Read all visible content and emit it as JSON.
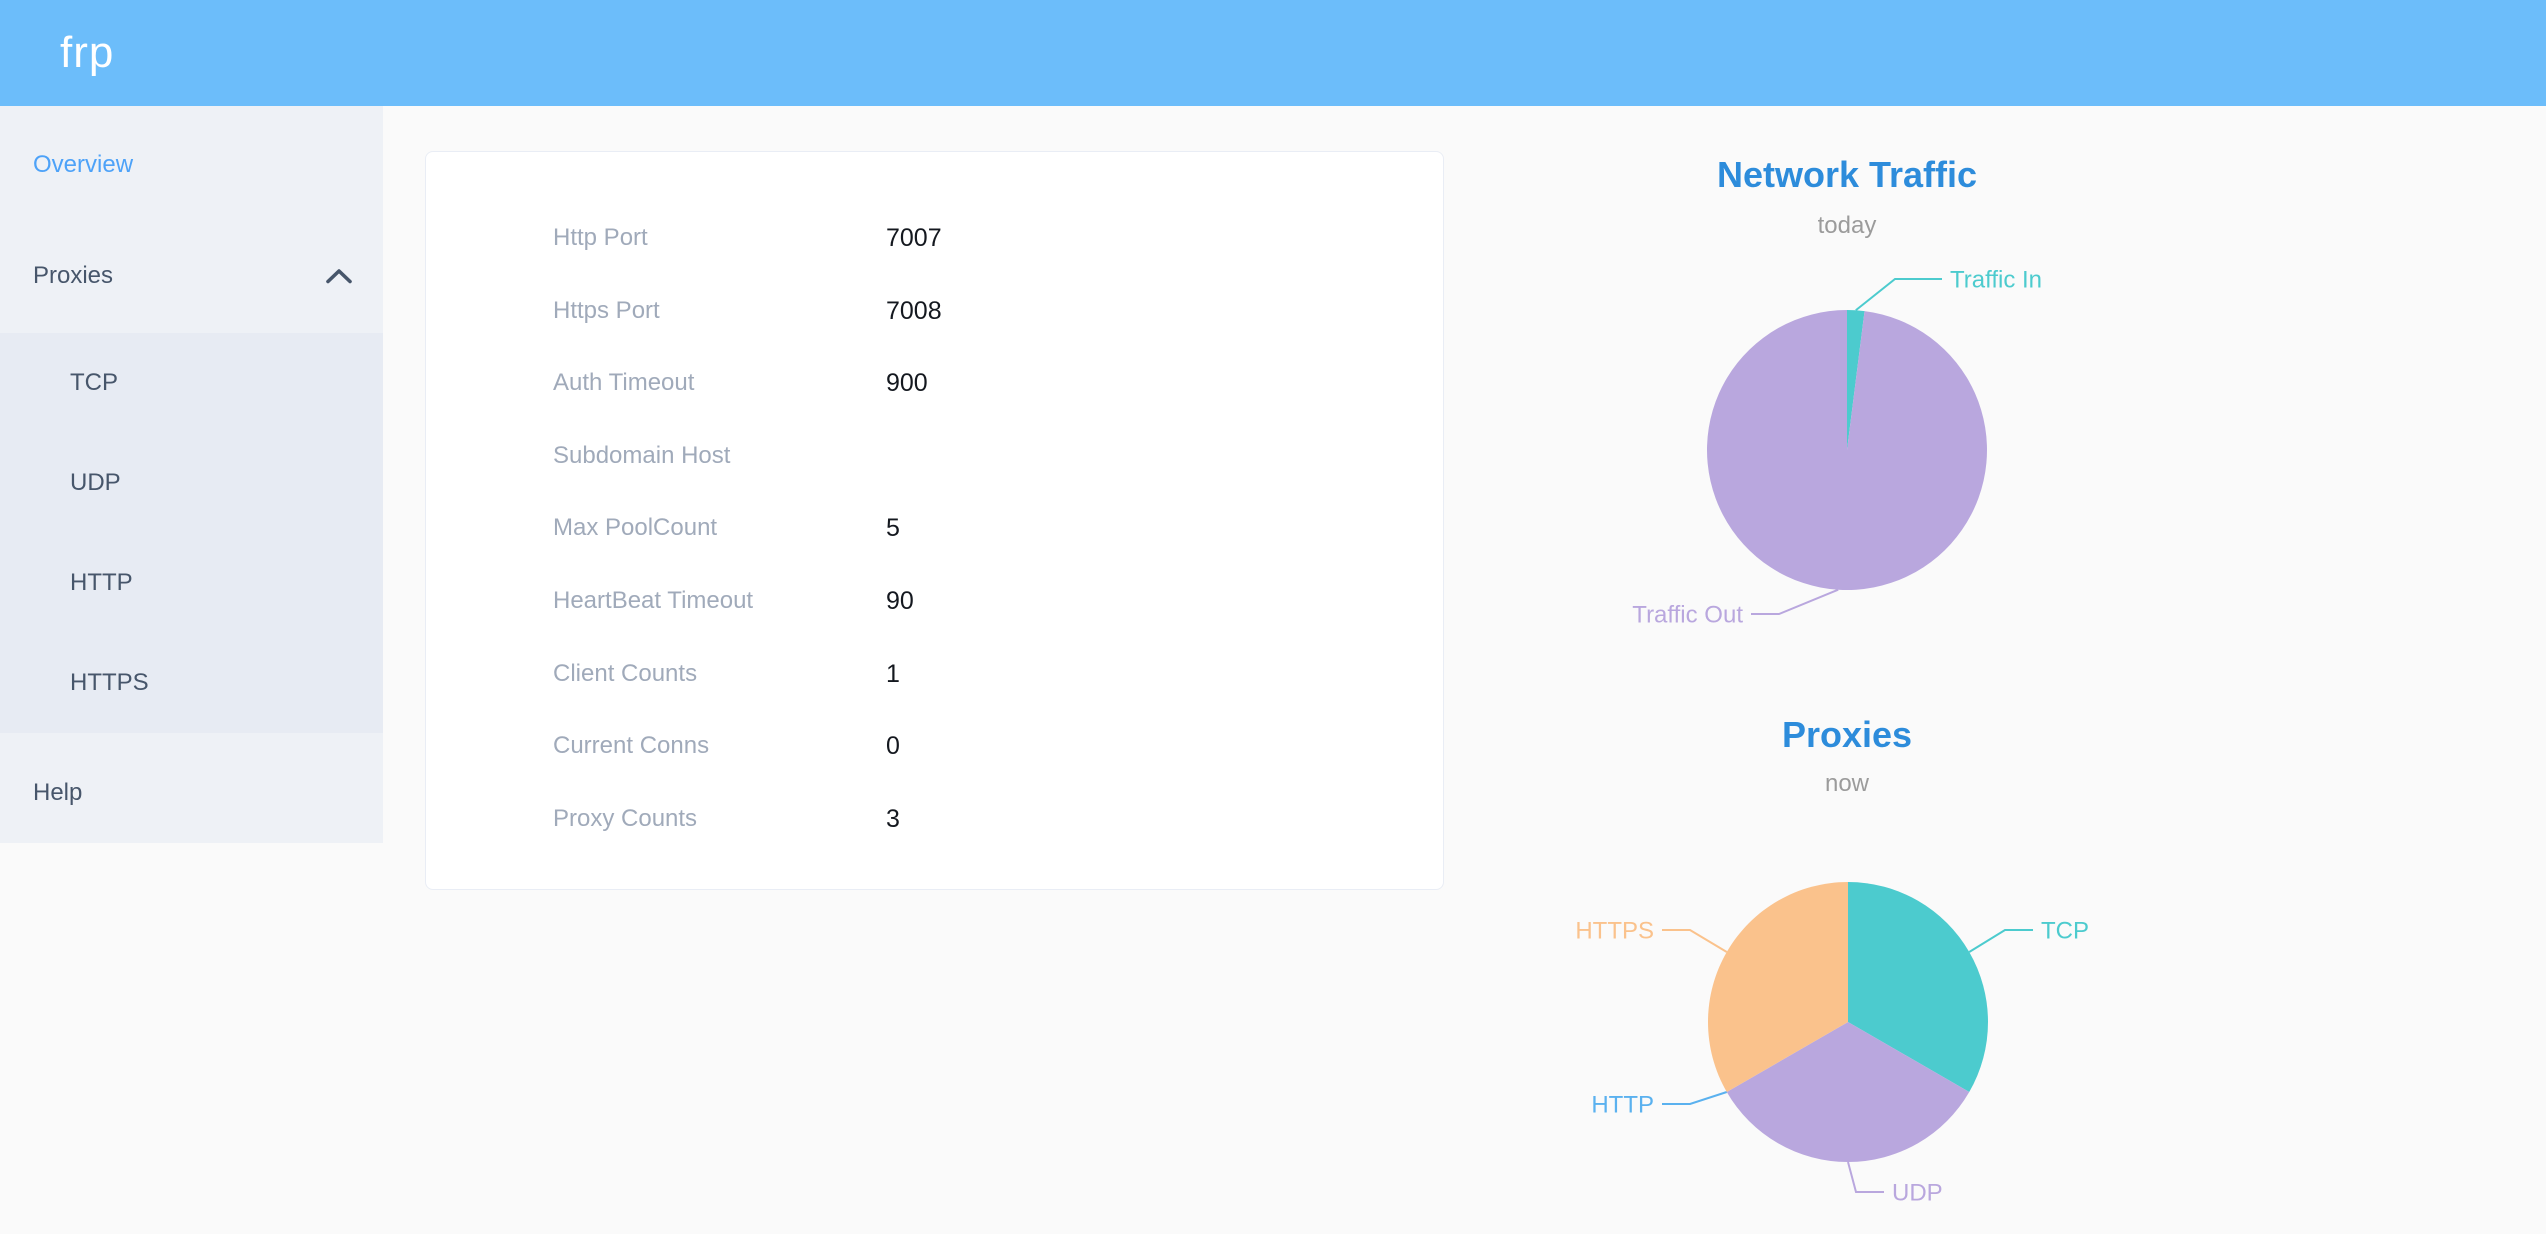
{
  "header": {
    "logo": "frp"
  },
  "colors": {
    "header_bg": "#6cbdfa",
    "sidebar_bg": "#eef1f6",
    "submenu_bg": "#e7ebf3",
    "sidebar_text": "#47566b",
    "active_item_blue": "#4da2f8",
    "page_bg": "#fafafa",
    "card_border": "#e9edf5",
    "card_label_gray": "#a0aaba",
    "chart_title_blue": "#2d8cdb",
    "chart_subtitle_gray": "#9b9b9b",
    "pie_teal": "#4ccbce",
    "pie_purple": "#b9a7de",
    "pie_orange": "#fac28c",
    "pie_blue": "#5ab1ef"
  },
  "sidebar": {
    "items": [
      {
        "label": "Overview",
        "active": true
      },
      {
        "label": "Proxies",
        "expanded": true,
        "children": [
          "TCP",
          "UDP",
          "HTTP",
          "HTTPS"
        ]
      },
      {
        "label": "Help"
      }
    ]
  },
  "overview_card": {
    "rows": [
      {
        "label": "Http Port",
        "value": "7007"
      },
      {
        "label": "Https Port",
        "value": "7008"
      },
      {
        "label": "Auth Timeout",
        "value": "900"
      },
      {
        "label": "Subdomain Host",
        "value": ""
      },
      {
        "label": "Max PoolCount",
        "value": "5"
      },
      {
        "label": "HeartBeat Timeout",
        "value": "90"
      },
      {
        "label": "Client Counts",
        "value": "1"
      },
      {
        "label": "Current Conns",
        "value": "0"
      },
      {
        "label": "Proxy Counts",
        "value": "3"
      }
    ]
  },
  "chart_data": [
    {
      "type": "pie",
      "title": "Network Traffic",
      "subtitle": "today",
      "legend_position": "none",
      "label_style": "leader-line",
      "series": [
        {
          "name": "Traffic In",
          "value": 2,
          "unit": "% of total (estimated from slice angle)",
          "color": "#4ccbce",
          "label_side": "right"
        },
        {
          "name": "Traffic Out",
          "value": 98,
          "unit": "% of total (estimated from slice angle)",
          "color": "#b9a7de",
          "label_side": "left"
        }
      ]
    },
    {
      "type": "pie",
      "title": "Proxies",
      "subtitle": "now",
      "legend_position": "none",
      "label_style": "leader-line",
      "series": [
        {
          "name": "TCP",
          "value": 1,
          "color": "#4ccbce",
          "label_side": "right"
        },
        {
          "name": "UDP",
          "value": 1,
          "color": "#b9a7de",
          "label_side": "right"
        },
        {
          "name": "HTTP",
          "value": 0,
          "color": "#5ab1ef",
          "label_side": "left"
        },
        {
          "name": "HTTPS",
          "value": 1,
          "color": "#fac28c",
          "label_side": "left"
        }
      ]
    }
  ]
}
